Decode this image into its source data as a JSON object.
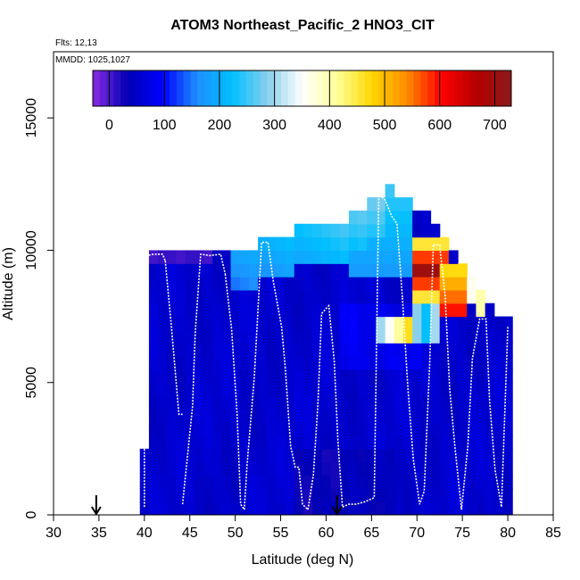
{
  "chart_data": {
    "type": "heatmap",
    "title": "ATOM3 Northeast_Pacific_2 HNO3_CIT",
    "flights_note": "Flts: 12,13",
    "dates_note": "MMDD: 1025,1027",
    "xlabel": "Latitude (deg N)",
    "ylabel": "Altitude (m)",
    "xlim": [
      30,
      85
    ],
    "ylim": [
      0,
      17500
    ],
    "x_ticks": [
      30,
      35,
      40,
      45,
      50,
      55,
      60,
      65,
      70,
      75,
      80,
      85
    ],
    "y_ticks": [
      0,
      5000,
      10000,
      15000
    ],
    "colorbar": {
      "range": [
        -30,
        730
      ],
      "ticks": [
        0,
        100,
        200,
        300,
        400,
        500,
        600,
        700
      ],
      "colors": [
        "#8a2be2",
        "#0000b4",
        "#0000ff",
        "#1e90ff",
        "#00bfff",
        "#87ceeb",
        "#ffffff",
        "#ffff99",
        "#ffd700",
        "#ff8c00",
        "#ff0000",
        "#b40000",
        "#8b1a1a"
      ]
    },
    "arrows_latitude": [
      34.7,
      61.2
    ],
    "grid": {
      "lat_start": 39.5,
      "lat_step": 1.0,
      "alt_start": 0,
      "alt_step": 500,
      "max_altitude": [
        2500,
        10000,
        10000,
        10000,
        10000,
        10000,
        10000,
        10000,
        10000,
        10000,
        10000,
        10000,
        10000,
        10500,
        10500,
        10500,
        10500,
        11000,
        11000,
        11000,
        11000,
        11000,
        11000,
        11500,
        11500,
        12000,
        12000,
        12500,
        12000,
        12000,
        11500,
        11500,
        11000,
        10500,
        10000,
        9500,
        9000,
        8500,
        8000,
        7500,
        7500
      ]
    },
    "flight_tracks": [
      {
        "lat": [
          40.0,
          40.0,
          40.3,
          41.0,
          42.0,
          42.3
        ],
        "alt": [
          300,
          4200,
          9800,
          9850,
          9850,
          9600
        ]
      },
      {
        "lat": [
          42.3,
          43.0,
          43.8,
          44.2
        ],
        "alt": [
          9600,
          7000,
          3800,
          3800
        ]
      },
      {
        "lat": [
          44.2,
          45.3,
          45.6,
          46.2,
          47.2,
          48.4,
          48.9
        ],
        "alt": [
          400,
          4100,
          6900,
          9850,
          9800,
          9850,
          9100
        ]
      },
      {
        "lat": [
          48.9,
          49.6,
          50.2,
          50.6,
          51.0
        ],
        "alt": [
          9100,
          7000,
          3800,
          400,
          200
        ]
      },
      {
        "lat": [
          51.0,
          51.3,
          52.1,
          52.9,
          53.6,
          54.2,
          55.1,
          55.5
        ],
        "alt": [
          200,
          1900,
          5200,
          10300,
          10300,
          8800,
          7100,
          5600
        ]
      },
      {
        "lat": [
          55.5,
          56.1,
          56.6,
          57.0,
          57.4,
          58.0
        ],
        "alt": [
          5600,
          2600,
          1800,
          1800,
          400,
          200
        ]
      },
      {
        "lat": [
          58.0,
          58.6,
          59.1,
          59.5,
          60.0,
          60.3,
          60.9,
          61.3,
          61.8
        ],
        "alt": [
          200,
          1500,
          4200,
          7600,
          7800,
          7900,
          5800,
          2800,
          300
        ]
      },
      {
        "lat": [
          61.8,
          62.5,
          63.3,
          64.3,
          65.3,
          65.8,
          66.5,
          67.2,
          67.8,
          68.4
        ],
        "alt": [
          300,
          400,
          400,
          500,
          650,
          12100,
          11900,
          11300,
          11000,
          8200
        ]
      },
      {
        "lat": [
          68.4,
          69.0,
          69.6,
          70.3,
          70.8,
          71.4,
          71.8
        ],
        "alt": [
          8200,
          4800,
          2100,
          400,
          900,
          5700,
          10200
        ]
      },
      {
        "lat": [
          71.8,
          72.5,
          73.1,
          73.6,
          74.2,
          74.9
        ],
        "alt": [
          10200,
          10200,
          8300,
          4800,
          2500,
          200
        ]
      },
      {
        "lat": [
          74.9,
          75.6,
          76.1,
          76.9,
          77.6,
          78.0,
          78.6,
          79.3,
          80.0
        ],
        "alt": [
          200,
          2600,
          5900,
          7400,
          7400,
          4300,
          1700,
          300,
          7100
        ]
      }
    ]
  }
}
